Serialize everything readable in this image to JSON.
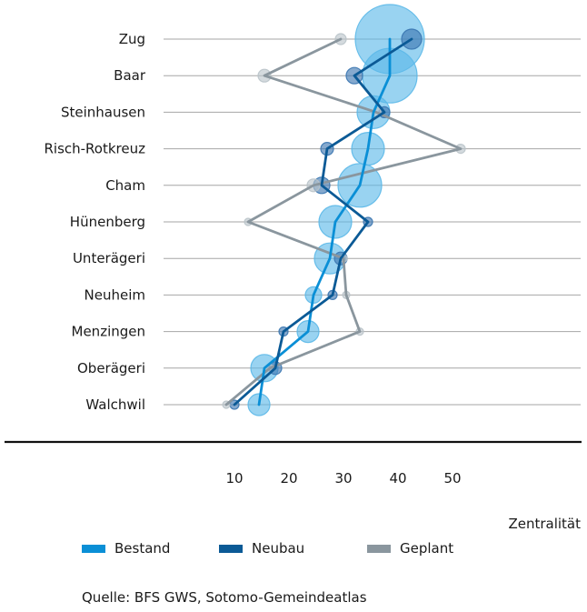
{
  "chart_data": {
    "type": "scatter",
    "categories": [
      "Zug",
      "Baar",
      "Steinhausen",
      "Risch-Rotkreuz",
      "Cham",
      "Hünenberg",
      "Unterägeri",
      "Neuheim",
      "Menzingen",
      "Oberägeri",
      "Walchwil"
    ],
    "xlabel": "Zentralität",
    "xticks": [
      10,
      20,
      30,
      40,
      50
    ],
    "xlim": [
      0,
      60
    ],
    "grid": true,
    "legend_position": "bottom",
    "series": [
      {
        "name": "Bestand",
        "color": "#0a8fd6",
        "bubble_color": "#5bb8e8",
        "values": [
          38.5,
          38.5,
          35.5,
          34.5,
          33,
          28.5,
          27.5,
          24.5,
          23.5,
          15.5,
          14.5
        ],
        "sizes": [
          38,
          30,
          18,
          18,
          24,
          18,
          17,
          9,
          12,
          15,
          12
        ]
      },
      {
        "name": "Neubau",
        "color": "#0b5a96",
        "bubble_color": "#3a75b0",
        "values": [
          42.5,
          32,
          37.5,
          27,
          26,
          34.5,
          29.5,
          28,
          19,
          17.5,
          10
        ],
        "sizes": [
          11,
          9,
          6,
          7,
          9,
          5,
          7,
          5,
          5,
          7,
          5
        ]
      },
      {
        "name": "Geplant",
        "color": "#8a969e",
        "bubble_color": "#b9c3c9",
        "values": [
          29.5,
          15.5,
          36,
          51.5,
          24.5,
          12.5,
          30,
          30.5,
          33,
          16.5,
          8.5
        ],
        "sizes": [
          6,
          7,
          5,
          5,
          7,
          4,
          4,
          4,
          4,
          4,
          4
        ]
      }
    ]
  },
  "source": "Quelle: BFS GWS, Sotomo-Gemeindeatlas"
}
